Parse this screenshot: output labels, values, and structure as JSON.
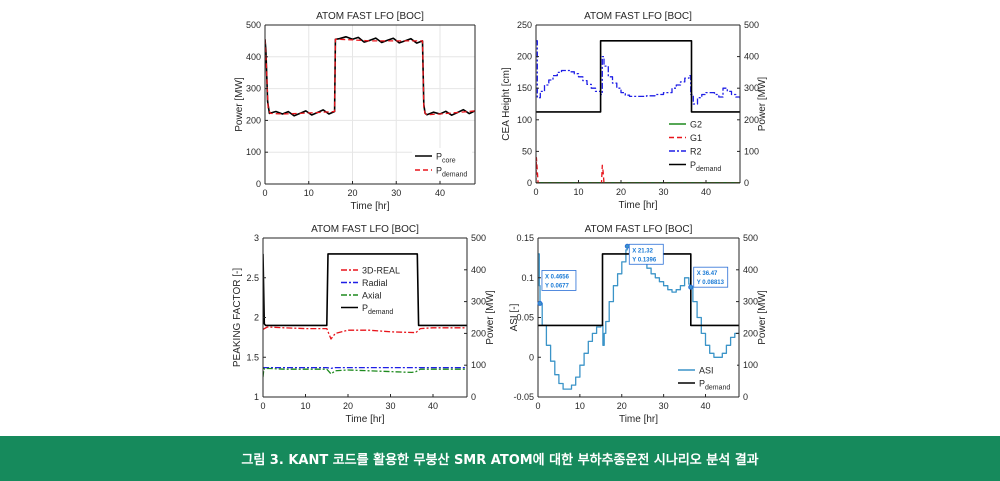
{
  "caption": "그림 3. KANT 코드를 활용한 무붕산 SMR ATOM에 대한 부하추종운전 시나리오 분석 결과",
  "colors": {
    "caption_bg": "#168a5c",
    "axis": "#262626",
    "grid": "#e6e6e6",
    "black": "#000000",
    "red": "#e8141b",
    "blue": "#1f1fe6",
    "green": "#1e8a1e",
    "asi": "#3b94c8",
    "tip_text": "#1a7ad6",
    "tip_border": "#2a6fd6"
  },
  "chart_data": [
    {
      "type": "line",
      "title": "ATOM FAST LFO [BOC]",
      "xlabel": "Time [hr]",
      "ylabel": "Power [MW]",
      "xlim": [
        0,
        48
      ],
      "ylim": [
        0,
        500
      ],
      "xticks": [
        0,
        10,
        20,
        30,
        40
      ],
      "yticks": [
        0,
        100,
        200,
        300,
        400,
        500
      ],
      "grid": true,
      "legend_position": "bottom-right",
      "series": [
        {
          "name": "P",
          "sub": "core",
          "color": "#000000",
          "dash": "",
          "sawtooth": 8,
          "x": [
            0,
            0.2,
            0.6,
            1,
            4,
            8,
            12,
            15.9,
            16.1,
            17,
            20,
            24,
            28,
            32,
            36,
            36.3,
            36.6,
            37,
            40,
            44,
            48
          ],
          "y": [
            455,
            420,
            260,
            222,
            220,
            222,
            225,
            228,
            455,
            457,
            455,
            452,
            452,
            450,
            450,
            250,
            222,
            218,
            220,
            225,
            230
          ]
        },
        {
          "name": "P",
          "sub": "demand",
          "color": "#e8141b",
          "dash": "5,3",
          "sawtooth": 0,
          "x": [
            0,
            0.3,
            0.7,
            1.2,
            4,
            8,
            12,
            15.9,
            16.1,
            17,
            20,
            24,
            28,
            32,
            36,
            36.3,
            36.6,
            37,
            40,
            44,
            48
          ],
          "y": [
            455,
            380,
            240,
            222,
            220,
            222,
            225,
            228,
            455,
            455,
            453,
            450,
            450,
            450,
            450,
            240,
            222,
            218,
            220,
            225,
            230
          ]
        }
      ]
    },
    {
      "type": "line",
      "title": "ATOM FAST LFO [BOC]",
      "xlabel": "Time [hr]",
      "ylabel": "CEA Height [cm]",
      "y2label": "Power [MW]",
      "xlim": [
        0,
        48
      ],
      "ylim": [
        0,
        250
      ],
      "y2lim": [
        0,
        500
      ],
      "xticks": [
        0,
        10,
        20,
        30,
        40
      ],
      "yticks": [
        0,
        50,
        100,
        150,
        200,
        250
      ],
      "y2ticks": [
        0,
        100,
        200,
        300,
        400,
        500
      ],
      "grid": false,
      "legend_position": "bottom-right",
      "series": [
        {
          "name": "G2",
          "sub": "",
          "color": "#1e8a1e",
          "dash": "",
          "axis": "left",
          "stairs": false,
          "x": [
            0,
            48
          ],
          "y": [
            0.5,
            0.5
          ]
        },
        {
          "name": "G1",
          "sub": "",
          "color": "#e8141b",
          "dash": "5,3",
          "axis": "left",
          "stairs": false,
          "x": [
            0,
            0.1,
            0.3,
            0.5,
            15.4,
            15.6,
            15.8,
            16.0,
            48
          ],
          "y": [
            0,
            40,
            20,
            0,
            0,
            28,
            18,
            0,
            0
          ]
        },
        {
          "name": "R2",
          "sub": "",
          "color": "#1f1fe6",
          "dash": "6,2,2,2",
          "axis": "left",
          "stairs": true,
          "x": [
            0,
            0.3,
            1,
            2,
            3,
            4,
            5,
            6,
            7,
            8,
            9,
            10,
            11,
            12,
            13,
            14,
            15.2,
            15.6,
            16,
            17,
            18,
            19,
            20,
            21,
            22,
            23,
            24,
            26,
            28,
            30,
            32,
            33,
            34,
            35,
            36,
            36.4,
            37,
            38,
            39,
            40,
            41,
            42,
            43,
            44,
            45,
            46,
            47,
            48
          ],
          "y": [
            225,
            135,
            145,
            155,
            163,
            170,
            175,
            178,
            178,
            176,
            173,
            168,
            162,
            156,
            150,
            145,
            140,
            200,
            185,
            168,
            158,
            150,
            143,
            139,
            137,
            137,
            137,
            138,
            140,
            143,
            150,
            155,
            160,
            166,
            170,
            140,
            125,
            135,
            140,
            143,
            143,
            140,
            136,
            150,
            145,
            140,
            136,
            132
          ]
        },
        {
          "name": "P",
          "sub": "demand",
          "color": "#000000",
          "dash": "",
          "axis": "right",
          "stairs": false,
          "x": [
            0,
            15.2,
            15.2,
            36.6,
            36.6,
            48
          ],
          "y": [
            225,
            225,
            450,
            450,
            225,
            225
          ]
        }
      ]
    },
    {
      "type": "line",
      "title": "ATOM FAST LFO [BOC]",
      "xlabel": "Time [hr]",
      "ylabel": "PEAKING FACTOR [-]",
      "y2label": "Power [MW]",
      "xlim": [
        0,
        48
      ],
      "ylim": [
        1,
        3
      ],
      "y2lim": [
        0,
        500
      ],
      "xticks": [
        0,
        10,
        20,
        30,
        40
      ],
      "yticks": [
        1,
        1.5,
        2,
        2.5,
        3
      ],
      "y2ticks": [
        0,
        100,
        200,
        300,
        400,
        500
      ],
      "grid": false,
      "legend_position": "top-center",
      "series": [
        {
          "name": "3D-REAL",
          "sub": "",
          "color": "#e8141b",
          "dash": "6,2,2,2",
          "axis": "left",
          "x": [
            0,
            1,
            5,
            10,
            15,
            16,
            17,
            20,
            25,
            30,
            36,
            37,
            40,
            44,
            48
          ],
          "y": [
            1.85,
            1.88,
            1.87,
            1.86,
            1.86,
            1.73,
            1.8,
            1.84,
            1.84,
            1.82,
            1.81,
            1.86,
            1.87,
            1.87,
            1.87
          ]
        },
        {
          "name": "Radial",
          "sub": "",
          "color": "#1f1fe6",
          "dash": "6,2,2,2",
          "axis": "left",
          "x": [
            0,
            5,
            10,
            15,
            16,
            17,
            20,
            25,
            30,
            36,
            37,
            40,
            48
          ],
          "y": [
            1.37,
            1.37,
            1.37,
            1.37,
            1.36,
            1.37,
            1.37,
            1.37,
            1.37,
            1.37,
            1.37,
            1.37,
            1.37
          ]
        },
        {
          "name": "Axial",
          "sub": "",
          "color": "#1e8a1e",
          "dash": "6,2,2,2",
          "axis": "left",
          "x": [
            0,
            0.2,
            0.4,
            1,
            5,
            10,
            15,
            16,
            17,
            20,
            25,
            30,
            35,
            36,
            37,
            40,
            48
          ],
          "y": [
            1.25,
            1.36,
            1.35,
            1.36,
            1.35,
            1.35,
            1.35,
            1.29,
            1.33,
            1.34,
            1.33,
            1.32,
            1.31,
            1.32,
            1.35,
            1.35,
            1.35
          ]
        },
        {
          "name": "P",
          "sub": "demand",
          "color": "#000000",
          "dash": "",
          "axis": "right",
          "x": [
            0,
            0.3,
            0.6,
            1,
            15,
            15.3,
            36.3,
            36.6,
            48
          ],
          "y": [
            450,
            230,
            225,
            225,
            225,
            450,
            450,
            225,
            225
          ]
        }
      ]
    },
    {
      "type": "line",
      "title": "ATOM FAST LFO [BOC]",
      "xlabel": "Time [hr]",
      "ylabel": "ASI [-]",
      "y2label": "Power [MW]",
      "xlim": [
        0,
        48
      ],
      "ylim": [
        -0.05,
        0.15
      ],
      "y2lim": [
        0,
        500
      ],
      "xticks": [
        0,
        10,
        20,
        30,
        40
      ],
      "yticks": [
        -0.05,
        0,
        0.05,
        0.1,
        0.15
      ],
      "y2ticks": [
        0,
        100,
        200,
        300,
        400,
        500
      ],
      "grid": false,
      "legend_position": "bottom-right",
      "series": [
        {
          "name": "ASI",
          "sub": "",
          "color": "#3b94c8",
          "dash": "",
          "axis": "left",
          "stairs": true,
          "x": [
            0,
            0.3,
            0.47,
            1,
            2,
            3,
            4,
            5,
            6,
            7,
            8,
            9,
            10,
            11,
            12,
            13,
            14,
            15,
            15.5,
            15.8,
            16.2,
            17,
            18,
            19,
            20,
            21,
            21.3,
            22,
            23,
            24,
            25,
            26,
            27,
            28,
            29,
            30,
            31,
            32,
            33,
            34,
            35,
            36,
            36.47,
            37,
            38,
            39,
            40,
            41,
            42,
            43,
            44,
            45,
            46,
            47,
            48
          ],
          "y": [
            0.13,
            0.09,
            0.0677,
            0.04,
            0.015,
            -0.005,
            -0.022,
            -0.033,
            -0.04,
            -0.04,
            -0.035,
            -0.025,
            -0.01,
            0.005,
            0.02,
            0.03,
            0.038,
            0.04,
            0.015,
            0.03,
            0.045,
            0.07,
            0.09,
            0.105,
            0.12,
            0.135,
            0.1396,
            0.138,
            0.132,
            0.125,
            0.118,
            0.112,
            0.105,
            0.1,
            0.095,
            0.09,
            0.085,
            0.082,
            0.085,
            0.09,
            0.1,
            0.092,
            0.0881,
            0.07,
            0.05,
            0.03,
            0.015,
            0.005,
            0,
            0,
            0.005,
            0.015,
            0.025,
            0.03,
            0.03
          ]
        },
        {
          "name": "P",
          "sub": "demand",
          "color": "#000000",
          "dash": "",
          "axis": "right",
          "stairs": false,
          "x": [
            0,
            15.4,
            15.4,
            36.5,
            36.5,
            48
          ],
          "y": [
            225,
            225,
            450,
            450,
            225,
            225
          ]
        }
      ],
      "annotations": [
        {
          "x": 0.4656,
          "y": 0.0677,
          "x_label": "X 0.4656",
          "y_label": "Y 0.0677"
        },
        {
          "x": 21.32,
          "y": 0.1396,
          "x_label": "X 21.32",
          "y_label": "Y 0.1396"
        },
        {
          "x": 36.47,
          "y": 0.08813,
          "x_label": "X 36.47",
          "y_label": "Y 0.08813"
        }
      ]
    }
  ]
}
